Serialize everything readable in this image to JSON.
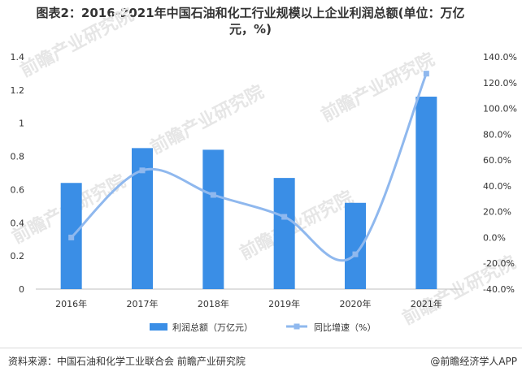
{
  "title_line1": "图表2：2016-2021年中国石油和化工行业规模以上企业利润总额(单位：万亿",
  "title_line2": "元，%)",
  "source": "资料来源：中国石油和化学工业联合会 前瞻产业研究院",
  "brand": "@前瞻经济学人APP",
  "watermark": "前瞻产业研究院",
  "colors": {
    "bar": "#3a8ee6",
    "line": "#8fb8ee"
  },
  "chart_data": {
    "type": "bar+line",
    "categories": [
      "2016年",
      "2017年",
      "2018年",
      "2019年",
      "2020年",
      "2021年"
    ],
    "series": [
      {
        "name": "利润总额（万亿元）",
        "type": "bar",
        "axis": "left",
        "values": [
          0.64,
          0.85,
          0.84,
          0.67,
          0.52,
          1.16
        ]
      },
      {
        "name": "同比增速（%）",
        "type": "line",
        "axis": "right",
        "values": [
          0.0,
          52.0,
          33.0,
          16.0,
          -13.0,
          127.0
        ]
      }
    ],
    "y_left": {
      "ylim": [
        0,
        1.4
      ],
      "ticks": [
        "0",
        "0.2",
        "0.4",
        "0.6",
        "0.8",
        "1",
        "1.2",
        "1.4"
      ]
    },
    "y_right": {
      "ylim": [
        -40,
        140
      ],
      "ticks": [
        "-40.0%",
        "-20.0%",
        "0.0%",
        "20.0%",
        "40.0%",
        "60.0%",
        "80.0%",
        "100.0%",
        "120.0%",
        "140.0%"
      ]
    },
    "grid": false,
    "legend": "bottom"
  }
}
